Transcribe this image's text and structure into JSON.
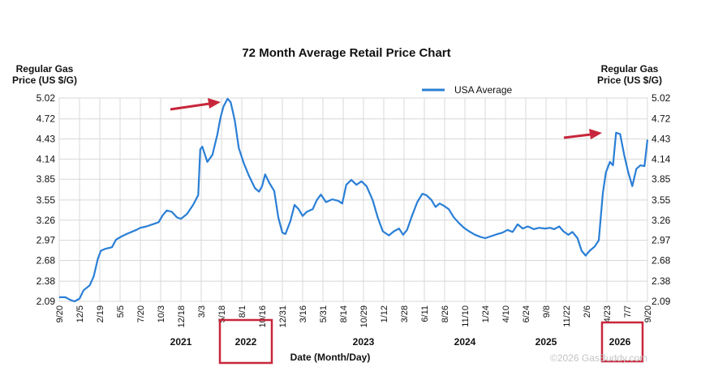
{
  "chart_data": {
    "type": "line",
    "title": "72 Month Average Retail Price Chart",
    "ylabel_left": [
      "Regular Gas",
      "Price (US $/G)"
    ],
    "ylabel_right": [
      "Regular Gas",
      "Price (US $/G)"
    ],
    "xlabel": "Date (Month/Day)",
    "legend": "USA Average",
    "legend_position": "top-right",
    "watermark": "©2026 GasBuddy.com",
    "grid": true,
    "ylim": [
      2.09,
      5.02
    ],
    "y_ticks": [
      "5.02",
      "4.72",
      "4.43",
      "4.14",
      "3.85",
      "3.55",
      "3.26",
      "2.97",
      "2.68",
      "2.38",
      "2.09"
    ],
    "x_ticks": [
      "9/20",
      "12/5",
      "2/19",
      "5/5",
      "7/20",
      "10/3",
      "12/18",
      "3/3",
      "5/18",
      "8/1",
      "10/16",
      "12/31",
      "3/16",
      "5/31",
      "8/14",
      "10/29",
      "1/12",
      "3/28",
      "6/11",
      "8/26",
      "11/10",
      "1/24",
      "4/10",
      "6/24",
      "9/8",
      "11/22",
      "2/6",
      "4/23",
      "7/7",
      "9/20"
    ],
    "years": [
      {
        "label": "2021",
        "tick": 6
      },
      {
        "label": "2022",
        "tick": 10
      },
      {
        "label": "2023",
        "tick": 15
      },
      {
        "label": "2024",
        "tick": 20
      },
      {
        "label": "2025",
        "tick": 24
      },
      {
        "label": "2026",
        "tick": 29
      }
    ],
    "highlighted_years": [
      "2022",
      "2026"
    ],
    "series": [
      {
        "name": "USA Average",
        "color": "#2a7fd6",
        "points": [
          [
            0,
            2.15
          ],
          [
            0.3,
            2.15
          ],
          [
            0.55,
            2.11
          ],
          [
            0.75,
            2.09
          ],
          [
            1.0,
            2.13
          ],
          [
            1.2,
            2.25
          ],
          [
            1.5,
            2.32
          ],
          [
            1.7,
            2.45
          ],
          [
            1.9,
            2.7
          ],
          [
            2.05,
            2.82
          ],
          [
            2.3,
            2.85
          ],
          [
            2.6,
            2.87
          ],
          [
            2.8,
            2.98
          ],
          [
            3.1,
            3.03
          ],
          [
            3.4,
            3.07
          ],
          [
            3.8,
            3.12
          ],
          [
            4.0,
            3.15
          ],
          [
            4.3,
            3.17
          ],
          [
            4.6,
            3.2
          ],
          [
            4.9,
            3.23
          ],
          [
            5.1,
            3.33
          ],
          [
            5.3,
            3.4
          ],
          [
            5.55,
            3.38
          ],
          [
            5.8,
            3.3
          ],
          [
            6.0,
            3.28
          ],
          [
            6.3,
            3.35
          ],
          [
            6.6,
            3.48
          ],
          [
            6.85,
            3.62
          ],
          [
            6.95,
            4.28
          ],
          [
            7.05,
            4.32
          ],
          [
            7.3,
            4.1
          ],
          [
            7.55,
            4.2
          ],
          [
            7.8,
            4.5
          ],
          [
            7.95,
            4.74
          ],
          [
            8.1,
            4.9
          ],
          [
            8.3,
            5.01
          ],
          [
            8.45,
            4.96
          ],
          [
            8.65,
            4.7
          ],
          [
            8.85,
            4.3
          ],
          [
            9.1,
            4.08
          ],
          [
            9.35,
            3.9
          ],
          [
            9.65,
            3.72
          ],
          [
            9.85,
            3.67
          ],
          [
            10.0,
            3.75
          ],
          [
            10.15,
            3.92
          ],
          [
            10.35,
            3.8
          ],
          [
            10.6,
            3.68
          ],
          [
            10.8,
            3.3
          ],
          [
            11.0,
            3.08
          ],
          [
            11.15,
            3.06
          ],
          [
            11.4,
            3.25
          ],
          [
            11.6,
            3.48
          ],
          [
            11.8,
            3.42
          ],
          [
            12.0,
            3.32
          ],
          [
            12.2,
            3.38
          ],
          [
            12.5,
            3.42
          ],
          [
            12.7,
            3.55
          ],
          [
            12.9,
            3.63
          ],
          [
            13.15,
            3.52
          ],
          [
            13.45,
            3.56
          ],
          [
            13.75,
            3.54
          ],
          [
            13.95,
            3.5
          ],
          [
            14.15,
            3.77
          ],
          [
            14.4,
            3.84
          ],
          [
            14.65,
            3.77
          ],
          [
            14.9,
            3.82
          ],
          [
            15.15,
            3.75
          ],
          [
            15.45,
            3.55
          ],
          [
            15.7,
            3.3
          ],
          [
            15.95,
            3.1
          ],
          [
            16.25,
            3.04
          ],
          [
            16.5,
            3.1
          ],
          [
            16.75,
            3.14
          ],
          [
            16.95,
            3.05
          ],
          [
            17.15,
            3.12
          ],
          [
            17.4,
            3.33
          ],
          [
            17.65,
            3.52
          ],
          [
            17.9,
            3.64
          ],
          [
            18.1,
            3.62
          ],
          [
            18.35,
            3.55
          ],
          [
            18.55,
            3.45
          ],
          [
            18.75,
            3.5
          ],
          [
            18.95,
            3.47
          ],
          [
            19.2,
            3.42
          ],
          [
            19.45,
            3.3
          ],
          [
            19.7,
            3.22
          ],
          [
            19.95,
            3.15
          ],
          [
            20.2,
            3.1
          ],
          [
            20.5,
            3.05
          ],
          [
            20.75,
            3.02
          ],
          [
            21.0,
            3.0
          ],
          [
            21.3,
            3.03
          ],
          [
            21.6,
            3.06
          ],
          [
            21.85,
            3.08
          ],
          [
            22.1,
            3.12
          ],
          [
            22.35,
            3.09
          ],
          [
            22.6,
            3.2
          ],
          [
            22.85,
            3.14
          ],
          [
            23.1,
            3.17
          ],
          [
            23.4,
            3.13
          ],
          [
            23.65,
            3.15
          ],
          [
            23.95,
            3.14
          ],
          [
            24.2,
            3.15
          ],
          [
            24.4,
            3.13
          ],
          [
            24.65,
            3.17
          ],
          [
            24.85,
            3.1
          ],
          [
            25.1,
            3.05
          ],
          [
            25.3,
            3.09
          ],
          [
            25.55,
            3.0
          ],
          [
            25.75,
            2.82
          ],
          [
            25.95,
            2.75
          ],
          [
            26.15,
            2.82
          ],
          [
            26.4,
            2.88
          ],
          [
            26.6,
            2.97
          ],
          [
            26.8,
            3.65
          ],
          [
            26.95,
            3.95
          ],
          [
            27.15,
            4.1
          ],
          [
            27.3,
            4.05
          ],
          [
            27.45,
            4.52
          ],
          [
            27.65,
            4.5
          ],
          [
            27.85,
            4.2
          ],
          [
            28.05,
            3.95
          ],
          [
            28.25,
            3.75
          ],
          [
            28.45,
            4.0
          ],
          [
            28.65,
            4.05
          ],
          [
            28.85,
            4.04
          ],
          [
            29.0,
            4.42
          ]
        ]
      }
    ]
  }
}
